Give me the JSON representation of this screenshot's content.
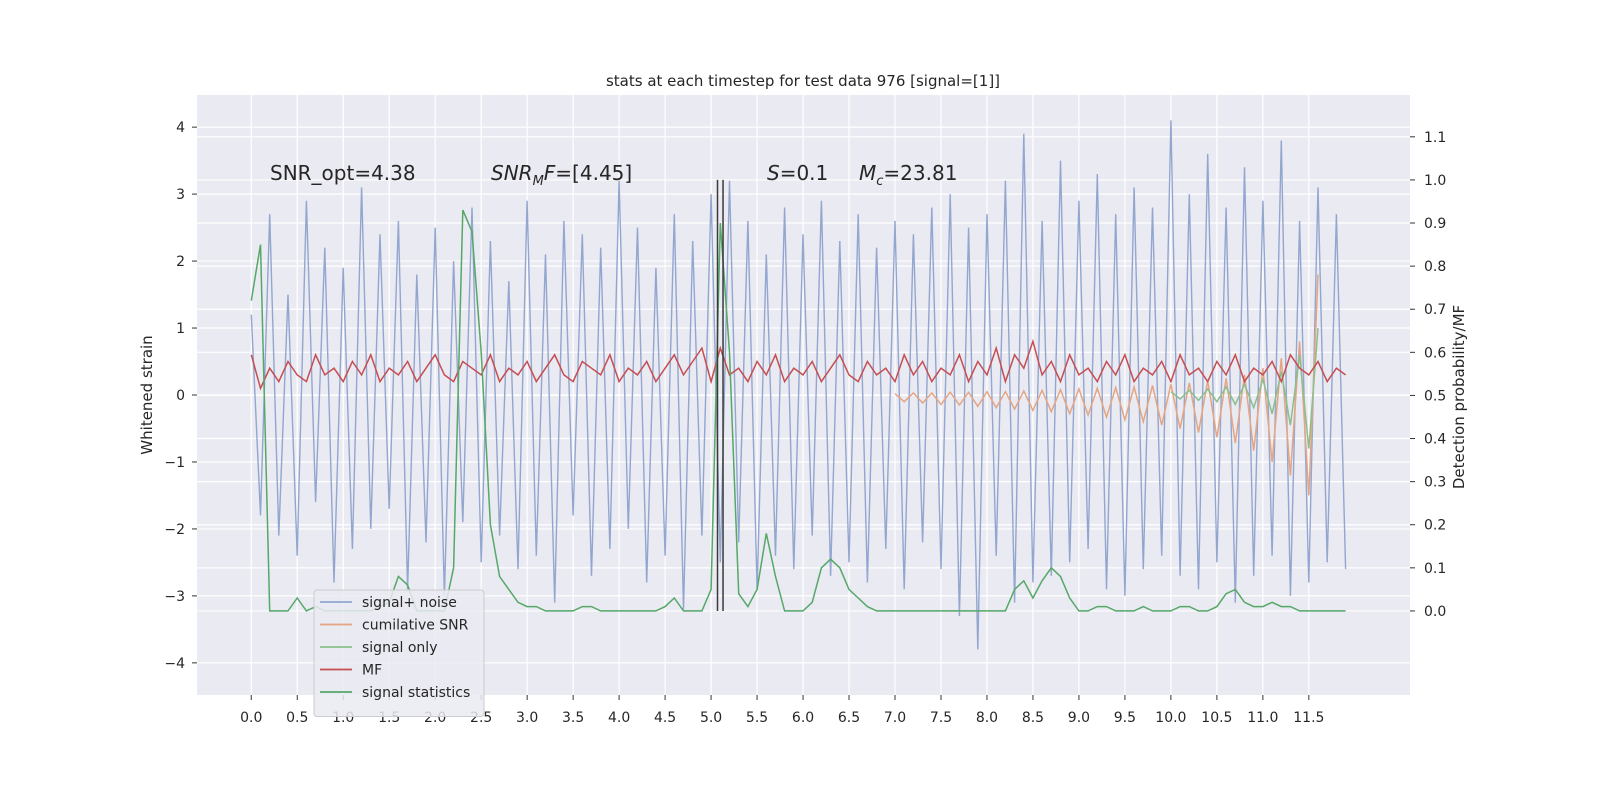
{
  "chart_data": {
    "type": "line",
    "title": "stats at each timestep for test data 976 [signal=[1]]",
    "y_label": "Whitened strain",
    "y2_label": "Detection probability/MF",
    "background": "#eaeaf2",
    "grid": true,
    "legend": "lower left",
    "xlim": [
      -0.59,
      12.6
    ],
    "ylim": [
      -4.48,
      4.48
    ],
    "y2lim": [
      -0.195,
      1.197
    ],
    "xticks": [
      {
        "value": 0,
        "label": "0.0"
      },
      0.5,
      {
        "value": 1,
        "label": "1.0"
      },
      1.5,
      {
        "value": 2,
        "label": "2.0"
      },
      2.5,
      {
        "value": 3,
        "label": "3.0"
      },
      3.5,
      {
        "value": 4,
        "label": "4.0"
      },
      4.5,
      {
        "value": 5,
        "label": "5.0"
      },
      5.5,
      {
        "value": 6,
        "label": "6.0"
      },
      6.5,
      {
        "value": 7,
        "label": "7.0"
      },
      7.5,
      {
        "value": 8,
        "label": "8.0"
      },
      8.5,
      {
        "value": 9,
        "label": "9.0"
      },
      9.5,
      {
        "value": 10,
        "label": "10.0"
      },
      10.5,
      {
        "value": 11,
        "label": "11.0"
      },
      11.5
    ],
    "yticks": [
      {
        "value": -4,
        "label": "−4"
      },
      {
        "value": -3,
        "label": "−3"
      },
      {
        "value": -2,
        "label": "−2"
      },
      {
        "value": -1,
        "label": "−1"
      },
      0,
      1,
      2,
      3,
      4
    ],
    "y2ticks": [
      {
        "value": 0,
        "label": "0.0"
      },
      0.1,
      0.2,
      0.3,
      0.4,
      0.5,
      0.6,
      0.7,
      0.8,
      0.9,
      {
        "value": 1,
        "label": "1.0"
      },
      1.1
    ],
    "x": [
      0,
      0.1,
      0.2,
      0.3,
      0.4,
      0.5,
      0.6,
      0.7,
      0.8,
      0.9,
      1,
      1.1,
      1.2,
      1.3,
      1.4,
      1.5,
      1.6,
      1.7,
      1.8,
      1.9,
      2,
      2.1,
      2.2,
      2.3,
      2.4,
      2.5,
      2.6,
      2.7,
      2.8,
      2.9,
      3,
      3.1,
      3.2,
      3.3,
      3.4,
      3.5,
      3.6,
      3.7,
      3.8,
      3.9,
      4,
      4.1,
      4.2,
      4.3,
      4.4,
      4.5,
      4.6,
      4.7,
      4.8,
      4.9,
      5,
      5.1,
      5.2,
      5.3,
      5.4,
      5.5,
      5.6,
      5.7,
      5.8,
      5.9,
      6,
      6.1,
      6.2,
      6.3,
      6.4,
      6.5,
      6.6,
      6.7,
      6.8,
      6.9,
      7,
      7.1,
      7.2,
      7.3,
      7.4,
      7.5,
      7.6,
      7.7,
      7.8,
      7.9,
      8,
      8.1,
      8.2,
      8.3,
      8.4,
      8.5,
      8.6,
      8.7,
      8.8,
      8.9,
      9,
      9.1,
      9.2,
      9.3,
      9.4,
      9.5,
      9.6,
      9.7,
      9.8,
      9.9,
      10,
      10.1,
      10.2,
      10.3,
      10.4,
      10.5,
      10.6,
      10.7,
      10.8,
      10.9,
      11,
      11.1,
      11.2,
      11.3,
      11.4,
      11.5,
      11.6,
      11.7,
      11.8,
      11.9
    ],
    "series": [
      {
        "name": "signal+ noise",
        "color": "#92a6cf",
        "values": [
          1.2,
          -1.8,
          2.7,
          -2.1,
          1.5,
          -2.4,
          2.9,
          -1.6,
          2.2,
          -2.8,
          1.9,
          -2.3,
          3.1,
          -2.0,
          2.4,
          -1.7,
          2.6,
          -2.9,
          1.8,
          -2.2,
          2.5,
          -3.0,
          2.0,
          -1.9,
          2.8,
          -2.5,
          2.3,
          -2.1,
          1.7,
          -2.6,
          2.9,
          -2.4,
          2.1,
          -3.1,
          2.6,
          -1.8,
          2.4,
          -2.7,
          2.2,
          -2.3,
          3.2,
          -2.0,
          2.5,
          -2.8,
          1.9,
          -2.4,
          2.7,
          -3.2,
          2.3,
          -2.1,
          3.0,
          -2.5,
          3.2,
          -2.2,
          2.6,
          -2.9,
          2.1,
          -2.4,
          2.8,
          -2.6,
          2.4,
          -2.1,
          2.9,
          -2.7,
          2.3,
          -2.5,
          2.7,
          -2.8,
          2.2,
          -2.3,
          2.6,
          -2.9,
          2.4,
          -2.2,
          2.8,
          -2.6,
          3.0,
          -3.3,
          2.5,
          -3.8,
          2.7,
          -2.4,
          3.2,
          -3.1,
          3.9,
          -2.8,
          2.6,
          -2.7,
          3.5,
          -2.5,
          2.9,
          -2.3,
          3.3,
          -2.9,
          2.7,
          -3.0,
          3.1,
          -2.6,
          2.8,
          -2.4,
          4.1,
          -2.7,
          3.0,
          -2.9,
          3.6,
          -2.5,
          2.8,
          -3.1,
          3.4,
          -2.7,
          2.9,
          -2.4,
          3.8,
          -3.0,
          2.6,
          -2.8,
          3.1,
          -2.5,
          2.7,
          -2.6
        ]
      },
      {
        "name": "cumilative SNR",
        "color": "#e5a582",
        "x": [
          7,
          7.1,
          7.2,
          7.3,
          7.4,
          7.5,
          7.6,
          7.7,
          7.8,
          7.9,
          8,
          8.1,
          8.2,
          8.3,
          8.4,
          8.5,
          8.6,
          8.7,
          8.8,
          8.9,
          9,
          9.1,
          9.2,
          9.3,
          9.4,
          9.5,
          9.6,
          9.7,
          9.8,
          9.9,
          10,
          10.1,
          10.2,
          10.3,
          10.4,
          10.5,
          10.6,
          10.7,
          10.8,
          10.9,
          11,
          11.1,
          11.2,
          11.3,
          11.4,
          11.5,
          11.6
        ],
        "values": [
          0.02,
          -0.1,
          0.03,
          -0.12,
          0.03,
          -0.14,
          0.04,
          -0.15,
          0.04,
          -0.17,
          0.05,
          -0.19,
          0.05,
          -0.21,
          0.06,
          -0.23,
          0.07,
          -0.25,
          0.08,
          -0.28,
          0.09,
          -0.3,
          0.1,
          -0.33,
          0.11,
          -0.37,
          0.12,
          -0.4,
          0.14,
          -0.45,
          0.16,
          -0.5,
          0.18,
          -0.56,
          0.21,
          -0.63,
          0.25,
          -0.72,
          0.3,
          -0.83,
          0.4,
          -1.0,
          0.55,
          -1.2,
          0.8,
          -1.5,
          1.8
        ]
      },
      {
        "name": "signal only",
        "color": "#8cbf8c",
        "x": [
          10,
          10.1,
          10.2,
          10.3,
          10.4,
          10.5,
          10.6,
          10.7,
          10.8,
          10.9,
          11,
          11.1,
          11.2,
          11.3,
          11.4,
          11.5,
          11.6
        ],
        "values": [
          0.05,
          -0.06,
          0.07,
          -0.08,
          0.09,
          -0.1,
          0.12,
          -0.14,
          0.16,
          -0.19,
          0.23,
          -0.28,
          0.35,
          -0.45,
          0.6,
          -0.8,
          1.0
        ]
      },
      {
        "name": "MF",
        "color": "#c44e52",
        "values": [
          0.6,
          0.1,
          0.4,
          0.2,
          0.5,
          0.3,
          0.2,
          0.6,
          0.3,
          0.4,
          0.2,
          0.5,
          0.3,
          0.6,
          0.2,
          0.4,
          0.3,
          0.5,
          0.2,
          0.4,
          0.6,
          0.3,
          0.2,
          0.5,
          0.4,
          0.3,
          0.6,
          0.2,
          0.4,
          0.3,
          0.5,
          0.2,
          0.4,
          0.6,
          0.3,
          0.2,
          0.5,
          0.4,
          0.3,
          0.6,
          0.2,
          0.4,
          0.3,
          0.5,
          0.2,
          0.4,
          0.6,
          0.3,
          0.5,
          0.7,
          0.2,
          0.7,
          0.3,
          0.4,
          0.2,
          0.5,
          0.3,
          0.6,
          0.2,
          0.4,
          0.3,
          0.5,
          0.2,
          0.4,
          0.6,
          0.3,
          0.2,
          0.5,
          0.3,
          0.4,
          0.2,
          0.6,
          0.3,
          0.5,
          0.2,
          0.4,
          0.3,
          0.6,
          0.2,
          0.5,
          0.3,
          0.7,
          0.2,
          0.6,
          0.4,
          0.8,
          0.3,
          0.5,
          0.2,
          0.6,
          0.3,
          0.4,
          0.2,
          0.5,
          0.3,
          0.6,
          0.2,
          0.4,
          0.3,
          0.5,
          0.2,
          0.6,
          0.3,
          0.4,
          0.2,
          0.5,
          0.3,
          0.6,
          0.2,
          0.4,
          0.3,
          0.5,
          0.2,
          0.6,
          0.4,
          0.3,
          0.5,
          0.2,
          0.4,
          0.3
        ]
      },
      {
        "name": "signal statistics",
        "color": "#55a868",
        "axis": "y2",
        "values": [
          0.72,
          0.85,
          0,
          0,
          0,
          0.03,
          0,
          0.01,
          0,
          0,
          0,
          0,
          0,
          0,
          0.01,
          0.02,
          0.08,
          0.06,
          0,
          0,
          0,
          0,
          0.1,
          0.93,
          0.88,
          0.6,
          0.2,
          0.08,
          0.05,
          0.02,
          0.01,
          0.01,
          0,
          0,
          0,
          0,
          0.01,
          0.01,
          0,
          0,
          0,
          0,
          0,
          0,
          0,
          0.01,
          0.03,
          0,
          0,
          0,
          0.05,
          0.9,
          0.6,
          0.04,
          0.01,
          0.05,
          0.18,
          0.08,
          0,
          0,
          0,
          0.02,
          0.1,
          0.12,
          0.1,
          0.05,
          0.03,
          0.01,
          0,
          0,
          0,
          0,
          0,
          0,
          0,
          0,
          0,
          0,
          0,
          0,
          0,
          0,
          0,
          0.05,
          0.07,
          0.03,
          0.07,
          0.1,
          0.08,
          0.03,
          0,
          0,
          0.01,
          0.01,
          0,
          0,
          0,
          0.01,
          0,
          0,
          0,
          0.01,
          0.01,
          0,
          0,
          0.01,
          0.04,
          0.05,
          0.02,
          0.01,
          0.01,
          0.02,
          0.01,
          0.01,
          0,
          0,
          0,
          0,
          0,
          0
        ]
      }
    ],
    "vlines": {
      "x": [
        5.07,
        5.13
      ],
      "ymin": 0,
      "ymax": 1,
      "axis": "y2",
      "color": "#3a3a3a"
    },
    "annotations": [
      [
        {
          "text": "SNR_opt=4.38"
        }
      ],
      [
        {
          "text": "SNR",
          "italic": true
        },
        {
          "text": "M",
          "italic": true,
          "sub": true
        },
        {
          "text": "F",
          "italic": true
        },
        {
          "text": "=[4.45]"
        }
      ],
      [
        {
          "text": "S",
          "italic": true
        },
        {
          "text": "=0.1"
        }
      ],
      [
        {
          "text": "M",
          "italic": true
        },
        {
          "text": "c",
          "italic": true,
          "sub": true
        },
        {
          "text": "=23.81"
        }
      ]
    ]
  }
}
